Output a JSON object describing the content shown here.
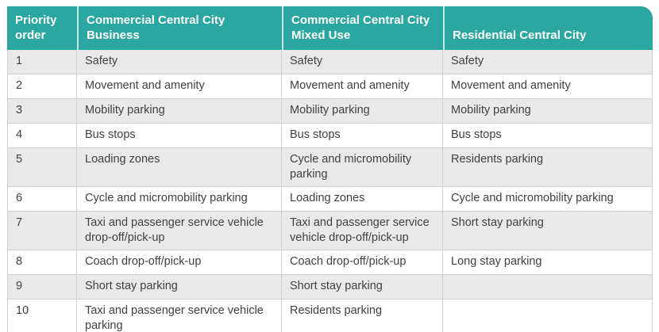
{
  "table": {
    "columns": [
      {
        "label": "Priority order"
      },
      {
        "label": "Commercial Central City Business"
      },
      {
        "label": "Commercial Central City Mixed Use"
      },
      {
        "label": "Residential Central City"
      }
    ],
    "rows": [
      {
        "cells": [
          "1",
          "Safety",
          "Safety",
          "Safety"
        ]
      },
      {
        "cells": [
          "2",
          "Movement and amenity",
          "Movement and amenity",
          "Movement and amenity"
        ]
      },
      {
        "cells": [
          "3",
          "Mobility parking",
          "Mobility parking",
          "Mobility parking"
        ]
      },
      {
        "cells": [
          "4",
          "Bus stops",
          "Bus stops",
          "Bus stops"
        ]
      },
      {
        "cells": [
          "5",
          "Loading zones",
          "Cycle and micromobility parking",
          "Residents parking"
        ]
      },
      {
        "cells": [
          "6",
          "Cycle and micromobility parking",
          "Loading zones",
          "Cycle and micromobility parking"
        ]
      },
      {
        "cells": [
          "7",
          "Taxi and passenger service vehicle drop-off/pick-up",
          "Taxi and passenger service vehicle drop-off/pick-up",
          "Short stay parking"
        ]
      },
      {
        "cells": [
          "8",
          "Coach drop-off/pick-up",
          "Coach drop-off/pick-up",
          "Long stay parking"
        ]
      },
      {
        "cells": [
          "9",
          "Short stay parking",
          "Short stay parking",
          ""
        ]
      },
      {
        "cells": [
          "10",
          "Taxi and passenger service vehicle parking",
          "Residents parking",
          ""
        ]
      }
    ]
  },
  "colors": {
    "header_bg": "#2aa7a1",
    "header_text": "#ffffff",
    "alt_row_bg": "#e9e9e9",
    "row_bg": "#ffffff",
    "border": "#d2d2d2",
    "text": "#414141"
  }
}
